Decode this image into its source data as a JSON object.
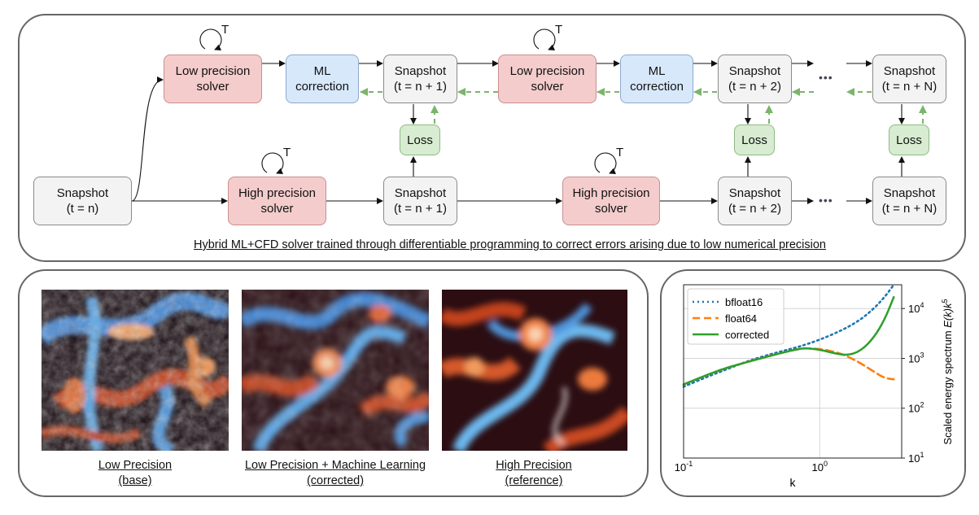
{
  "top": {
    "caption": "Hybrid ML+CFD solver trained through differentiable programming to correct errors arising due to low numerical precision",
    "loop_label": "T",
    "ellipsis": "•••",
    "nodes": {
      "snapshot": "Snapshot",
      "t_n": "(t = n)",
      "t_n1": "(t = n + 1)",
      "t_n2": "(t = n + 2)",
      "t_nN": "(t = n + N)",
      "low1": "Low precision",
      "low2": "solver",
      "high1": "High precision",
      "high2": "solver",
      "ml1": "ML",
      "ml2": "correction",
      "loss": "Loss"
    },
    "colors": {
      "solver_low": "#f4cccc",
      "ml": "#d8e8fb",
      "loss": "#d7ecd0",
      "snapshot": "#f3f3f3",
      "grad_arrow": "#7ab56a"
    }
  },
  "fields": [
    {
      "label1": "Low Precision",
      "label2": "(base)"
    },
    {
      "label1": "Low Precision + Machine Learning",
      "label2": "(corrected)"
    },
    {
      "label1": "High Precision",
      "label2": "(reference)"
    }
  ],
  "chart_data": {
    "type": "line",
    "xscale": "log",
    "yscale": "log",
    "xlabel": "k",
    "ylabel": "Scaled energy spectrum E(k)k^5",
    "xlim": [
      0.1,
      4.0
    ],
    "ylim": [
      10,
      30000
    ],
    "xticks": [
      "10^-1",
      "10^0"
    ],
    "yticks": [
      "10^1",
      "10^2",
      "10^3",
      "10^4"
    ],
    "grid": true,
    "legend_position": "top-left",
    "series": [
      {
        "name": "bfloat16",
        "style": "dotted",
        "color": "#1f77b4",
        "x": [
          0.1,
          0.15,
          0.2,
          0.3,
          0.5,
          0.7,
          1.0,
          1.5,
          2.0,
          2.5,
          3.0,
          3.5
        ],
        "y": [
          270,
          430,
          580,
          900,
          1350,
          1700,
          2350,
          3800,
          6000,
          10000,
          17000,
          30000
        ]
      },
      {
        "name": "float64",
        "style": "dashed",
        "color": "#ff7f0e",
        "x": [
          0.1,
          0.15,
          0.2,
          0.3,
          0.5,
          0.7,
          0.8,
          1.0,
          1.3,
          1.6,
          2.0,
          2.5,
          3.0,
          3.5
        ],
        "y": [
          300,
          470,
          630,
          860,
          1250,
          1550,
          1600,
          1550,
          1350,
          1100,
          800,
          540,
          400,
          380
        ]
      },
      {
        "name": "corrected",
        "style": "solid",
        "color": "#2ca02c",
        "x": [
          0.1,
          0.15,
          0.2,
          0.3,
          0.5,
          0.7,
          0.8,
          1.0,
          1.3,
          1.6,
          2.0,
          2.5,
          3.0,
          3.5
        ],
        "y": [
          300,
          470,
          630,
          860,
          1250,
          1550,
          1600,
          1500,
          1250,
          1150,
          1400,
          2600,
          6000,
          17000
        ]
      }
    ]
  }
}
